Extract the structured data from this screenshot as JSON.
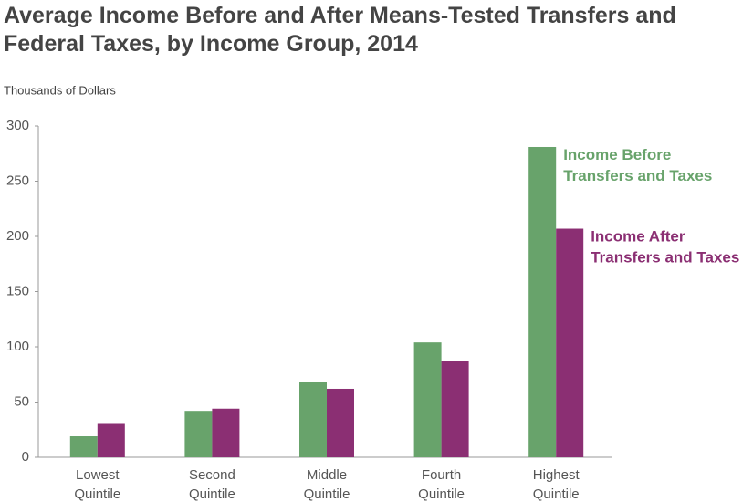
{
  "chart_data": {
    "type": "bar",
    "title": "Average Income Before and After Means-Tested Transfers and Federal Taxes, by Income Group, 2014",
    "y_label": "Thousands of Dollars",
    "categories": [
      "Lowest Quintile",
      "Second Quintile",
      "Middle Quintile",
      "Fourth Quintile",
      "Highest Quintile"
    ],
    "series": [
      {
        "name": "Income Before Transfers and Taxes",
        "color": "#68a36b",
        "values": [
          19,
          42,
          68,
          104,
          281
        ]
      },
      {
        "name": "Income After Transfers and Taxes",
        "color": "#8b2f73",
        "values": [
          31,
          44,
          62,
          87,
          207
        ]
      }
    ],
    "ylim": [
      0,
      300
    ],
    "yticks": [
      0,
      50,
      100,
      150,
      200,
      250,
      300
    ],
    "grid": false
  }
}
